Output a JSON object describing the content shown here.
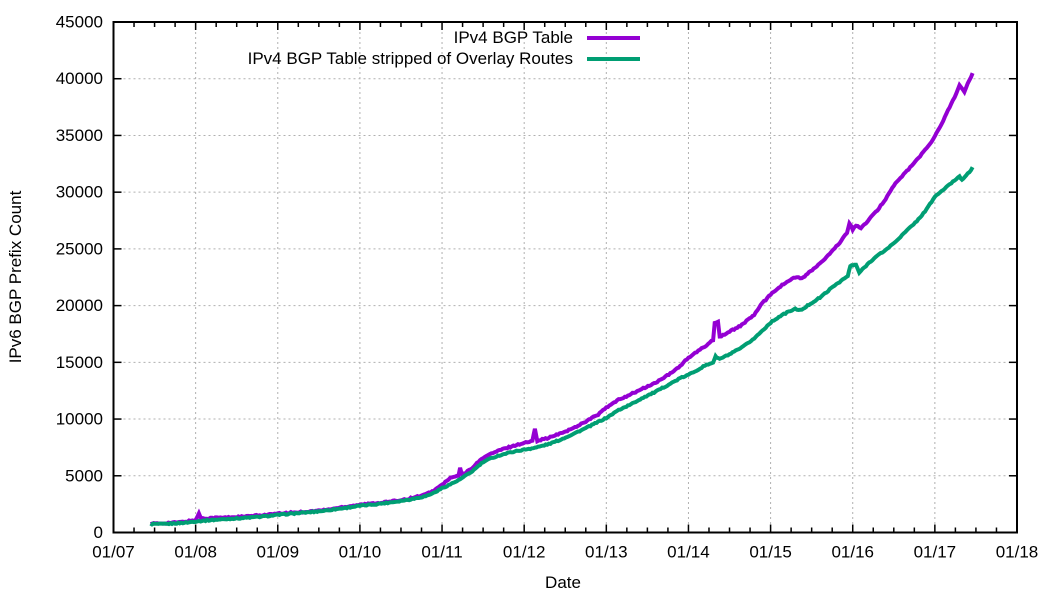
{
  "chart_data": {
    "type": "line",
    "xlabel": "Date",
    "ylabel": "IPv6 BGP Prefix Count",
    "xlim": [
      2007,
      2018
    ],
    "ylim": [
      0,
      45000
    ],
    "x_tick_positions": [
      2007,
      2008,
      2009,
      2010,
      2011,
      2012,
      2013,
      2014,
      2015,
      2016,
      2017,
      2018
    ],
    "x_tick_labels": [
      "01/07",
      "01/08",
      "01/09",
      "01/10",
      "01/11",
      "01/12",
      "01/13",
      "01/14",
      "01/15",
      "01/16",
      "01/17",
      "01/18"
    ],
    "x_minor_tick_interval": 0.25,
    "y_tick_interval": 5000,
    "y_tick_labels": [
      "0",
      "5000",
      "10000",
      "15000",
      "20000",
      "25000",
      "30000",
      "35000",
      "40000",
      "45000"
    ],
    "grid": true,
    "grid_color": "#b0b0b0",
    "legend_position": "top-right-inside",
    "series": [
      {
        "name": "IPv4 BGP Table",
        "color": "#9400d3",
        "points": [
          [
            2007.45,
            800
          ],
          [
            2007.55,
            780
          ],
          [
            2007.65,
            840
          ],
          [
            2007.8,
            900
          ],
          [
            2007.9,
            980
          ],
          [
            2008.0,
            1100
          ],
          [
            2008.04,
            1650
          ],
          [
            2008.07,
            1220
          ],
          [
            2008.2,
            1280
          ],
          [
            2008.4,
            1330
          ],
          [
            2008.6,
            1400
          ],
          [
            2008.8,
            1520
          ],
          [
            2009.0,
            1650
          ],
          [
            2009.2,
            1760
          ],
          [
            2009.4,
            1860
          ],
          [
            2009.6,
            2000
          ],
          [
            2009.8,
            2250
          ],
          [
            2010.0,
            2450
          ],
          [
            2010.2,
            2580
          ],
          [
            2010.4,
            2750
          ],
          [
            2010.6,
            2980
          ],
          [
            2010.8,
            3350
          ],
          [
            2010.9,
            3700
          ],
          [
            2011.0,
            4200
          ],
          [
            2011.08,
            4700
          ],
          [
            2011.12,
            4850
          ],
          [
            2011.2,
            5000
          ],
          [
            2011.22,
            5650
          ],
          [
            2011.25,
            5050
          ],
          [
            2011.35,
            5600
          ],
          [
            2011.5,
            6600
          ],
          [
            2011.6,
            6950
          ],
          [
            2011.7,
            7250
          ],
          [
            2011.85,
            7600
          ],
          [
            2012.0,
            7900
          ],
          [
            2012.1,
            8050
          ],
          [
            2012.13,
            9200
          ],
          [
            2012.16,
            8100
          ],
          [
            2012.3,
            8350
          ],
          [
            2012.45,
            8750
          ],
          [
            2012.6,
            9200
          ],
          [
            2012.75,
            9800
          ],
          [
            2012.9,
            10400
          ],
          [
            2013.0,
            11000
          ],
          [
            2013.15,
            11700
          ],
          [
            2013.3,
            12200
          ],
          [
            2013.45,
            12700
          ],
          [
            2013.6,
            13200
          ],
          [
            2013.8,
            14100
          ],
          [
            2013.9,
            14700
          ],
          [
            2014.0,
            15400
          ],
          [
            2014.1,
            15900
          ],
          [
            2014.2,
            16400
          ],
          [
            2014.3,
            17000
          ],
          [
            2014.32,
            18500
          ],
          [
            2014.36,
            18550
          ],
          [
            2014.38,
            17250
          ],
          [
            2014.5,
            17700
          ],
          [
            2014.65,
            18300
          ],
          [
            2014.8,
            19200
          ],
          [
            2014.9,
            20200
          ],
          [
            2015.0,
            21000
          ],
          [
            2015.1,
            21600
          ],
          [
            2015.2,
            22100
          ],
          [
            2015.3,
            22500
          ],
          [
            2015.38,
            22400
          ],
          [
            2015.45,
            22800
          ],
          [
            2015.6,
            23700
          ],
          [
            2015.7,
            24400
          ],
          [
            2015.8,
            25200
          ],
          [
            2015.88,
            25900
          ],
          [
            2015.93,
            26400
          ],
          [
            2015.96,
            27300
          ],
          [
            2016.0,
            26700
          ],
          [
            2016.04,
            27100
          ],
          [
            2016.1,
            26800
          ],
          [
            2016.2,
            27600
          ],
          [
            2016.3,
            28400
          ],
          [
            2016.4,
            29400
          ],
          [
            2016.5,
            30600
          ],
          [
            2016.6,
            31400
          ],
          [
            2016.7,
            32200
          ],
          [
            2016.8,
            33000
          ],
          [
            2016.9,
            33900
          ],
          [
            2017.0,
            34900
          ],
          [
            2017.08,
            36000
          ],
          [
            2017.16,
            37200
          ],
          [
            2017.24,
            38400
          ],
          [
            2017.3,
            39400
          ],
          [
            2017.34,
            39000
          ],
          [
            2017.36,
            38800
          ],
          [
            2017.4,
            39600
          ],
          [
            2017.44,
            40100
          ],
          [
            2017.46,
            40500
          ]
        ]
      },
      {
        "name": "IPv4 BGP Table stripped of Overlay Routes",
        "color": "#009e73",
        "points": [
          [
            2007.45,
            760
          ],
          [
            2007.6,
            740
          ],
          [
            2007.75,
            800
          ],
          [
            2007.9,
            880
          ],
          [
            2008.0,
            980
          ],
          [
            2008.2,
            1100
          ],
          [
            2008.4,
            1200
          ],
          [
            2008.6,
            1290
          ],
          [
            2008.8,
            1400
          ],
          [
            2009.0,
            1550
          ],
          [
            2009.2,
            1680
          ],
          [
            2009.4,
            1800
          ],
          [
            2009.6,
            1950
          ],
          [
            2009.8,
            2150
          ],
          [
            2010.0,
            2350
          ],
          [
            2010.2,
            2500
          ],
          [
            2010.4,
            2680
          ],
          [
            2010.6,
            2900
          ],
          [
            2010.8,
            3200
          ],
          [
            2010.9,
            3500
          ],
          [
            2011.0,
            3900
          ],
          [
            2011.1,
            4250
          ],
          [
            2011.2,
            4600
          ],
          [
            2011.35,
            5300
          ],
          [
            2011.5,
            6200
          ],
          [
            2011.6,
            6550
          ],
          [
            2011.7,
            6800
          ],
          [
            2011.85,
            7100
          ],
          [
            2012.0,
            7300
          ],
          [
            2012.15,
            7500
          ],
          [
            2012.3,
            7800
          ],
          [
            2012.45,
            8200
          ],
          [
            2012.6,
            8700
          ],
          [
            2012.75,
            9200
          ],
          [
            2012.9,
            9750
          ],
          [
            2013.0,
            10100
          ],
          [
            2013.15,
            10800
          ],
          [
            2013.3,
            11300
          ],
          [
            2013.45,
            11900
          ],
          [
            2013.6,
            12400
          ],
          [
            2013.8,
            13200
          ],
          [
            2013.9,
            13600
          ],
          [
            2014.0,
            13900
          ],
          [
            2014.1,
            14300
          ],
          [
            2014.2,
            14700
          ],
          [
            2014.3,
            15000
          ],
          [
            2014.33,
            15500
          ],
          [
            2014.38,
            15300
          ],
          [
            2014.5,
            15700
          ],
          [
            2014.65,
            16300
          ],
          [
            2014.8,
            17100
          ],
          [
            2014.9,
            17800
          ],
          [
            2015.0,
            18500
          ],
          [
            2015.1,
            19000
          ],
          [
            2015.2,
            19400
          ],
          [
            2015.3,
            19700
          ],
          [
            2015.38,
            19600
          ],
          [
            2015.45,
            20000
          ],
          [
            2015.6,
            20700
          ],
          [
            2015.7,
            21300
          ],
          [
            2015.8,
            21900
          ],
          [
            2015.9,
            22400
          ],
          [
            2015.94,
            22600
          ],
          [
            2015.97,
            23500
          ],
          [
            2016.04,
            23600
          ],
          [
            2016.08,
            22900
          ],
          [
            2016.2,
            23800
          ],
          [
            2016.3,
            24400
          ],
          [
            2016.4,
            24900
          ],
          [
            2016.5,
            25500
          ],
          [
            2016.6,
            26200
          ],
          [
            2016.7,
            26900
          ],
          [
            2016.8,
            27600
          ],
          [
            2016.9,
            28500
          ],
          [
            2017.0,
            29600
          ],
          [
            2017.1,
            30200
          ],
          [
            2017.2,
            30800
          ],
          [
            2017.3,
            31400
          ],
          [
            2017.33,
            31100
          ],
          [
            2017.38,
            31500
          ],
          [
            2017.44,
            31900
          ],
          [
            2017.46,
            32200
          ]
        ]
      }
    ]
  }
}
